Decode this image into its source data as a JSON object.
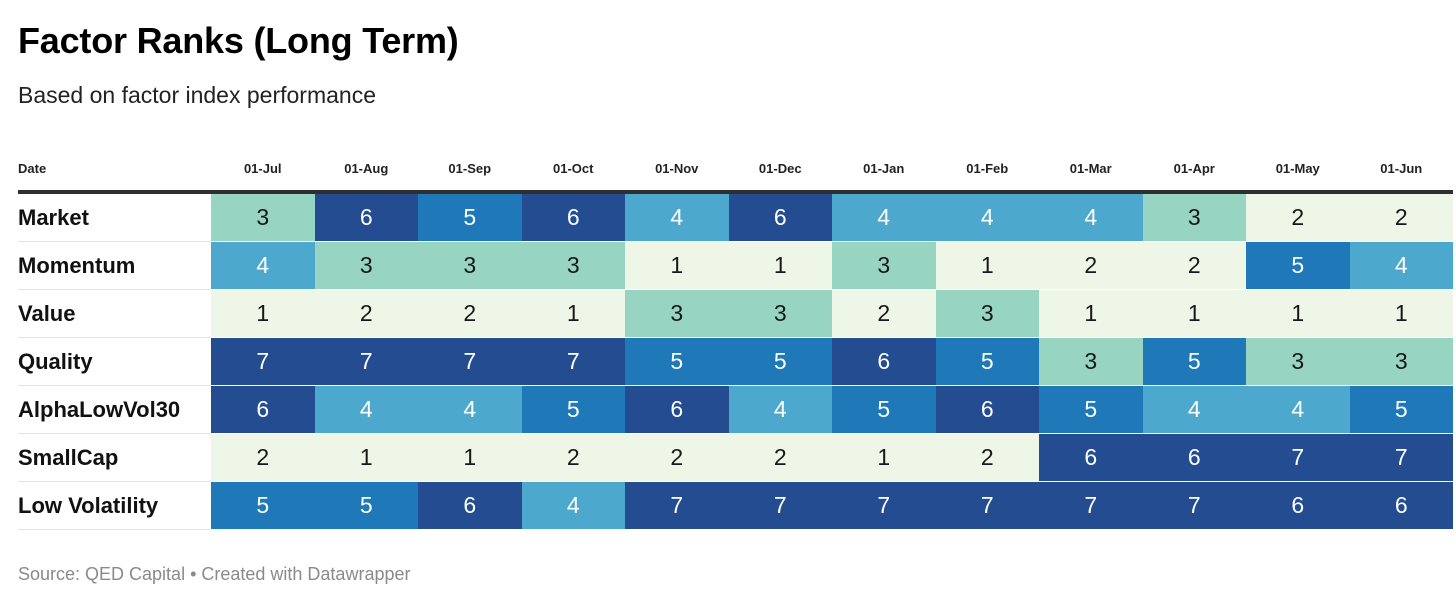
{
  "title": "Factor Ranks (Long Term)",
  "subtitle": "Based on factor index performance",
  "source_line": "Source: QED Capital • Created with Datawrapper",
  "colors": {
    "1": "#eef7e7",
    "2": "#eef7e7",
    "3": "#97d4c1",
    "4": "#4ca9cd",
    "5": "#1f78b8",
    "6": "#234c91",
    "7": "#234c91",
    "text_dark": "#181818",
    "text_light": "#ffffff"
  },
  "chart_data": {
    "type": "heatmap",
    "row_header": "Date",
    "columns": [
      "01-Jul",
      "01-Aug",
      "01-Sep",
      "01-Oct",
      "01-Nov",
      "01-Dec",
      "01-Jan",
      "01-Feb",
      "01-Mar",
      "01-Apr",
      "01-May",
      "01-Jun"
    ],
    "rows": [
      {
        "name": "Market",
        "values": [
          3,
          6,
          5,
          6,
          4,
          6,
          4,
          4,
          4,
          3,
          2,
          2
        ]
      },
      {
        "name": "Momentum",
        "values": [
          4,
          3,
          3,
          3,
          1,
          1,
          3,
          1,
          2,
          2,
          5,
          4
        ]
      },
      {
        "name": "Value",
        "values": [
          1,
          2,
          2,
          1,
          3,
          3,
          2,
          3,
          1,
          1,
          1,
          1
        ]
      },
      {
        "name": "Quality",
        "values": [
          7,
          7,
          7,
          7,
          5,
          5,
          6,
          5,
          3,
          5,
          3,
          3
        ]
      },
      {
        "name": "AlphaLowVol30",
        "values": [
          6,
          4,
          4,
          5,
          6,
          4,
          5,
          6,
          5,
          4,
          4,
          5
        ]
      },
      {
        "name": "SmallCap",
        "values": [
          2,
          1,
          1,
          2,
          2,
          2,
          1,
          2,
          6,
          6,
          7,
          7
        ]
      },
      {
        "name": "Low Volatility",
        "values": [
          5,
          5,
          6,
          4,
          7,
          7,
          7,
          7,
          7,
          7,
          6,
          6
        ]
      }
    ]
  }
}
